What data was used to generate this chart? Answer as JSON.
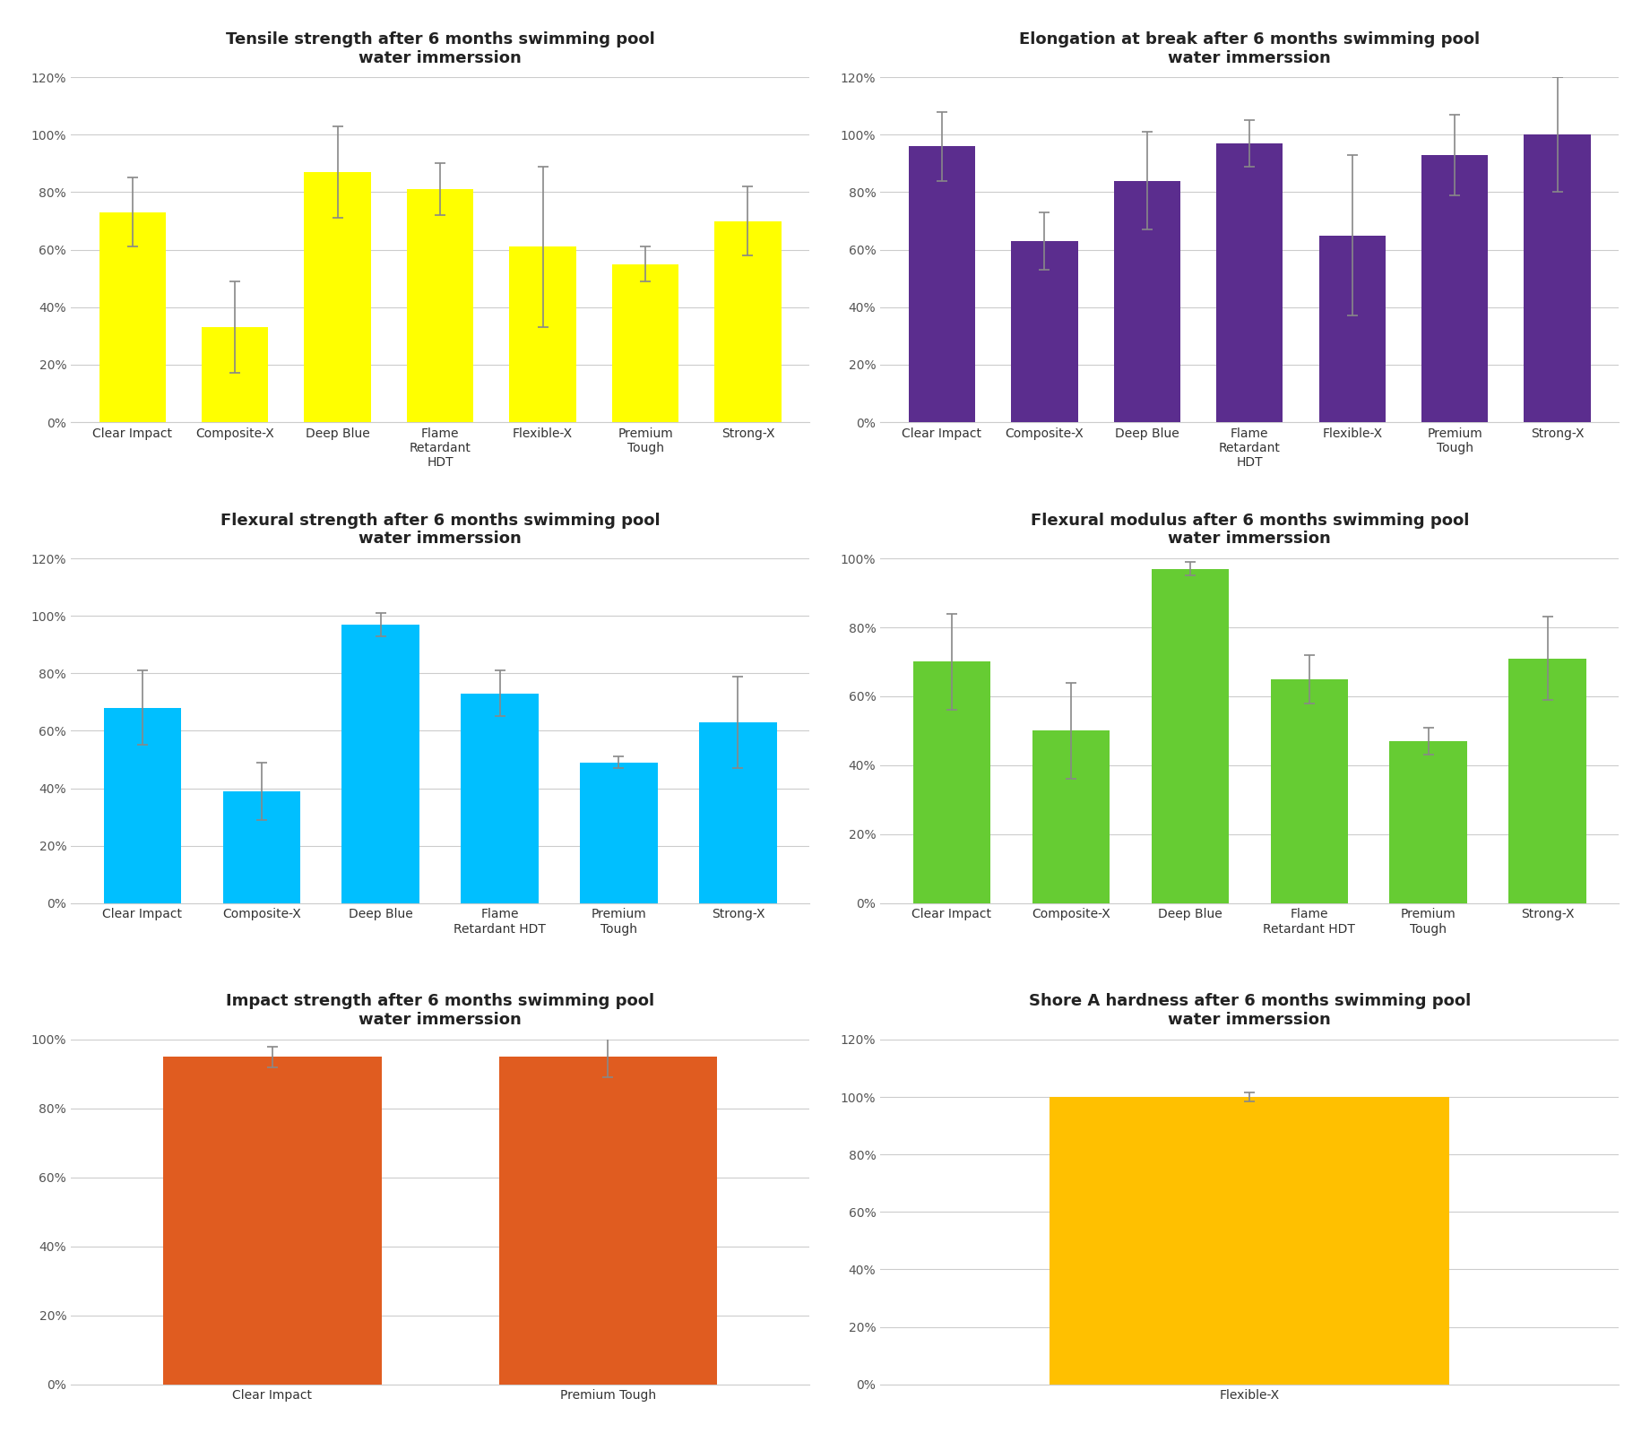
{
  "charts": [
    {
      "title": "Tensile strength after 6 months swimming pool\nwater immerssion",
      "categories": [
        "Clear Impact",
        "Composite-X",
        "Deep Blue",
        "Flame\nRetardant\nHDT",
        "Flexible-X",
        "Premium\nTough",
        "Strong-X"
      ],
      "values": [
        0.73,
        0.33,
        0.87,
        0.81,
        0.61,
        0.55,
        0.7
      ],
      "errors": [
        0.12,
        0.16,
        0.16,
        0.09,
        0.28,
        0.06,
        0.12
      ],
      "color": "#FFFF00",
      "ylim": [
        0,
        1.2
      ],
      "yticks": [
        0,
        0.2,
        0.4,
        0.6,
        0.8,
        1.0,
        1.2
      ],
      "yticklabels": [
        "0%",
        "20%",
        "40%",
        "60%",
        "80%",
        "100%",
        "120%"
      ]
    },
    {
      "title": "Elongation at break after 6 months swimming pool\nwater immerssion",
      "categories": [
        "Clear Impact",
        "Composite-X",
        "Deep Blue",
        "Flame\nRetardant\nHDT",
        "Flexible-X",
        "Premium\nTough",
        "Strong-X"
      ],
      "values": [
        0.96,
        0.63,
        0.84,
        0.97,
        0.65,
        0.93,
        1.0
      ],
      "errors": [
        0.12,
        0.1,
        0.17,
        0.08,
        0.28,
        0.14,
        0.2
      ],
      "color": "#5B2D8E",
      "ylim": [
        0,
        1.2
      ],
      "yticks": [
        0,
        0.2,
        0.4,
        0.6,
        0.8,
        1.0,
        1.2
      ],
      "yticklabels": [
        "0%",
        "20%",
        "40%",
        "60%",
        "80%",
        "100%",
        "120%"
      ]
    },
    {
      "title": "Flexural strength after 6 months swimming pool\nwater immerssion",
      "categories": [
        "Clear Impact",
        "Composite-X",
        "Deep Blue",
        "Flame\nRetardant HDT",
        "Premium\nTough",
        "Strong-X"
      ],
      "values": [
        0.68,
        0.39,
        0.97,
        0.73,
        0.49,
        0.63
      ],
      "errors": [
        0.13,
        0.1,
        0.04,
        0.08,
        0.02,
        0.16
      ],
      "color": "#00BFFF",
      "ylim": [
        0,
        1.2
      ],
      "yticks": [
        0,
        0.2,
        0.4,
        0.6,
        0.8,
        1.0,
        1.2
      ],
      "yticklabels": [
        "0%",
        "20%",
        "40%",
        "60%",
        "80%",
        "100%",
        "120%"
      ]
    },
    {
      "title": "Flexural modulus after 6 months swimming pool\nwater immerssion",
      "categories": [
        "Clear Impact",
        "Composite-X",
        "Deep Blue",
        "Flame\nRetardant HDT",
        "Premium\nTough",
        "Strong-X"
      ],
      "values": [
        0.7,
        0.5,
        0.97,
        0.65,
        0.47,
        0.71
      ],
      "errors": [
        0.14,
        0.14,
        0.02,
        0.07,
        0.04,
        0.12
      ],
      "color": "#66CC33",
      "ylim": [
        0,
        1.0
      ],
      "yticks": [
        0,
        0.2,
        0.4,
        0.6,
        0.8,
        1.0
      ],
      "yticklabels": [
        "0%",
        "20%",
        "40%",
        "60%",
        "80%",
        "100%"
      ]
    },
    {
      "title": "Impact strength after 6 months swimming pool\nwater immerssion",
      "categories": [
        "Clear Impact",
        "Premium Tough"
      ],
      "values": [
        0.95,
        0.95
      ],
      "errors": [
        0.03,
        0.06
      ],
      "color": "#E05C20",
      "ylim": [
        0,
        1.0
      ],
      "yticks": [
        0,
        0.2,
        0.4,
        0.6,
        0.8,
        1.0
      ],
      "yticklabels": [
        "0%",
        "20%",
        "40%",
        "60%",
        "80%",
        "100%"
      ]
    },
    {
      "title": "Shore A hardness after 6 months swimming pool\nwater immerssion",
      "categories": [
        "Flexible-X"
      ],
      "values": [
        1.0
      ],
      "errors": [
        0.015
      ],
      "color": "#FFC000",
      "ylim": [
        0,
        1.2
      ],
      "yticks": [
        0,
        0.2,
        0.4,
        0.6,
        0.8,
        1.0,
        1.2
      ],
      "yticklabels": [
        "0%",
        "20%",
        "40%",
        "60%",
        "80%",
        "100%",
        "120%"
      ]
    }
  ],
  "grid_color": "#CCCCCC",
  "background_color": "#FFFFFF",
  "title_fontsize": 13,
  "tick_fontsize": 10
}
